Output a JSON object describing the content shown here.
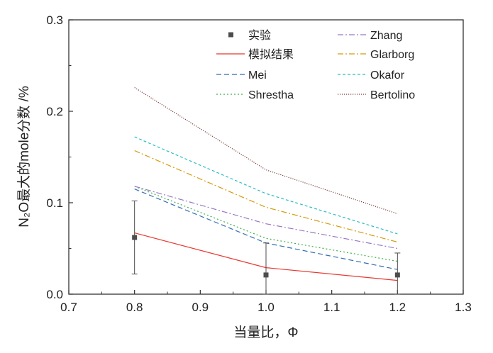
{
  "chart_data": {
    "type": "line",
    "title": "",
    "xlabel": "当量比，Φ",
    "ylabel": "N₂O最大的mole分数 /%",
    "xlim": [
      0.7,
      1.3
    ],
    "ylim": [
      0.0,
      0.3
    ],
    "xticks": [
      "0.7",
      "0.8",
      "0.9",
      "1.0",
      "1.1",
      "1.2",
      "1.3"
    ],
    "yticks": [
      "0.0",
      "0.1",
      "0.2",
      "0.3"
    ],
    "x": [
      0.8,
      1.0,
      1.2
    ],
    "grid": false,
    "legend_position": "top",
    "experiment": {
      "name": "实验",
      "x": [
        0.8,
        1.0,
        1.2
      ],
      "y": [
        0.062,
        0.021,
        0.021
      ],
      "err_low": [
        0.04,
        0.021,
        0.021
      ],
      "err_high": [
        0.04,
        0.035,
        0.024
      ],
      "color": "#4d4d4d"
    },
    "series": [
      {
        "name": "模拟结果",
        "values": [
          0.067,
          0.029,
          0.015
        ],
        "color": "#e8382f",
        "dash": "solid"
      },
      {
        "name": "Mei",
        "values": [
          0.115,
          0.056,
          0.027
        ],
        "color": "#2f6db5",
        "dash": "longdash"
      },
      {
        "name": "Shrestha",
        "values": [
          0.118,
          0.061,
          0.036
        ],
        "color": "#3fae49",
        "dash": "dot"
      },
      {
        "name": "Zhang",
        "values": [
          0.118,
          0.077,
          0.05
        ],
        "color": "#9b79c2",
        "dash": "dashdot"
      },
      {
        "name": "Glarborg",
        "values": [
          0.157,
          0.095,
          0.057
        ],
        "color": "#d49a0c",
        "dash": "dashdot"
      },
      {
        "name": "Okafor",
        "values": [
          0.172,
          0.11,
          0.066
        ],
        "color": "#2bbcc0",
        "dash": "shortdash"
      },
      {
        "name": "Bertolino",
        "values": [
          0.226,
          0.136,
          0.088
        ],
        "color": "#7a3a3a",
        "dash": "densedot"
      }
    ]
  }
}
